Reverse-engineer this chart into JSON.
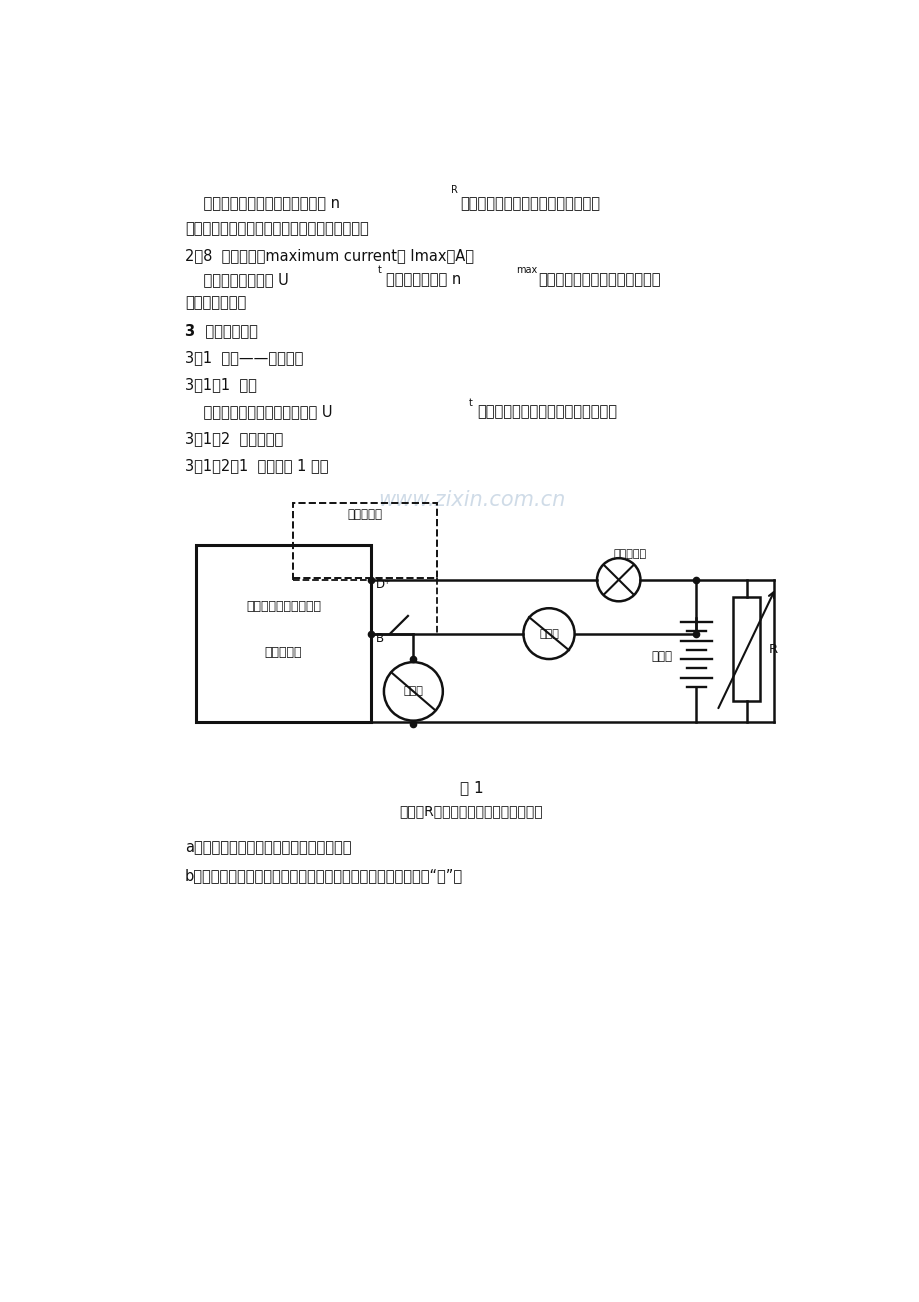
{
  "bg_color": "#ffffff",
  "watermark_color": "#c0d0e0",
  "page_width": 9.2,
  "page_height": 13.02,
  "watermark": "www.zixin.com.cn",
  "figure_caption": "图 1",
  "figure_note": "图中：R根据交流发电机选用的变阻器",
  "note_a": "a．电压表应直接连接于发电机的输出端。",
  "note_b": "b．采用的导线应符合下述要求：发电机输出端接线柱至蓄电池“十”极"
}
